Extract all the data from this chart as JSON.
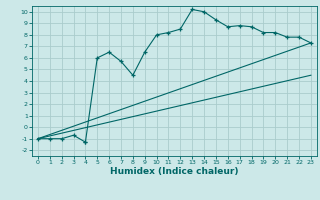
{
  "title": "",
  "xlabel": "Humidex (Indice chaleur)",
  "bg_color": "#cce8e8",
  "line_color": "#006666",
  "grid_color": "#aacccc",
  "xlim": [
    -0.5,
    23.5
  ],
  "ylim": [
    -2.5,
    10.5
  ],
  "xticks": [
    0,
    1,
    2,
    3,
    4,
    5,
    6,
    7,
    8,
    9,
    10,
    11,
    12,
    13,
    14,
    15,
    16,
    17,
    18,
    19,
    20,
    21,
    22,
    23
  ],
  "yticks": [
    -2,
    -1,
    0,
    1,
    2,
    3,
    4,
    5,
    6,
    7,
    8,
    9,
    10
  ],
  "curve1_x": [
    0,
    1,
    2,
    3,
    4,
    4,
    5,
    6,
    7,
    8,
    9,
    10,
    11,
    12,
    13,
    14,
    15,
    16,
    17,
    18,
    19,
    20,
    21,
    22,
    23
  ],
  "curve1_y": [
    -1,
    -1,
    -1,
    -0.7,
    -1.3,
    -1.3,
    6.0,
    6.5,
    5.7,
    4.5,
    6.5,
    8.0,
    8.2,
    8.5,
    10.2,
    10.0,
    9.3,
    8.7,
    8.8,
    8.7,
    8.2,
    8.2,
    7.8,
    7.8,
    7.3
  ],
  "line1_x": [
    0,
    23
  ],
  "line1_y": [
    -1,
    7.3
  ],
  "line2_x": [
    0,
    23
  ],
  "line2_y": [
    -1,
    4.5
  ]
}
